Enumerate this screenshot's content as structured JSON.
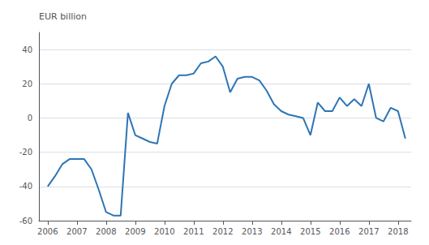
{
  "chart_data": {
    "type": "line",
    "ylabel": "EUR billion",
    "color": "#2E75B6",
    "x": [
      2006.0,
      2006.25,
      2006.5,
      2006.75,
      2007.0,
      2007.25,
      2007.5,
      2007.75,
      2008.0,
      2008.25,
      2008.5,
      2008.75,
      2009.0,
      2009.25,
      2009.5,
      2009.75,
      2010.0,
      2010.25,
      2010.5,
      2010.75,
      2011.0,
      2011.25,
      2011.5,
      2011.75,
      2012.0,
      2012.25,
      2012.5,
      2012.75,
      2013.0,
      2013.25,
      2013.5,
      2013.75,
      2014.0,
      2014.25,
      2014.5,
      2014.75,
      2015.0,
      2015.25,
      2015.5,
      2015.75,
      2016.0,
      2016.25,
      2016.5,
      2016.75,
      2017.0,
      2017.25,
      2017.5,
      2017.75,
      2018.0,
      2018.25
    ],
    "values": [
      -40,
      -34,
      -27,
      -24,
      -24,
      -24,
      -30,
      -42,
      -55,
      -57,
      -57,
      3,
      -10,
      -12,
      -14,
      -15,
      7,
      20,
      25,
      25,
      26,
      32,
      33,
      36,
      30,
      15,
      23,
      24,
      24,
      22,
      16,
      8,
      4,
      2,
      1,
      0,
      -10,
      9,
      4,
      4,
      12,
      7,
      11,
      7,
      20,
      0,
      -2,
      6,
      4,
      -12
    ],
    "xlim": [
      2005.7,
      2018.45
    ],
    "xticks": [
      2006,
      2007,
      2008,
      2009,
      2010,
      2011,
      2012,
      2013,
      2014,
      2015,
      2016,
      2017,
      2018
    ],
    "ylim": [
      -60,
      50
    ],
    "yticks": [
      -60,
      -40,
      -20,
      0,
      20,
      40
    ],
    "grid": "y"
  }
}
